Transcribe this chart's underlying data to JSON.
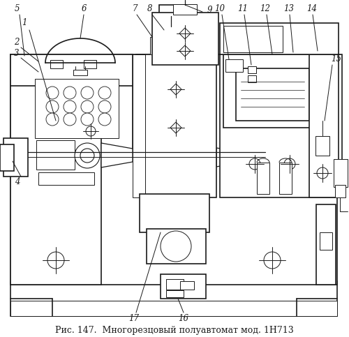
{
  "title": "Рис. 147.  Многорезцовый полуавтомат мод. 1Н713",
  "title_fontsize": 9.0,
  "bg_color": "#ffffff",
  "line_color": "#1a1a1a",
  "fig_width": 5.0,
  "fig_height": 4.83,
  "label_fontsize": 8.5
}
